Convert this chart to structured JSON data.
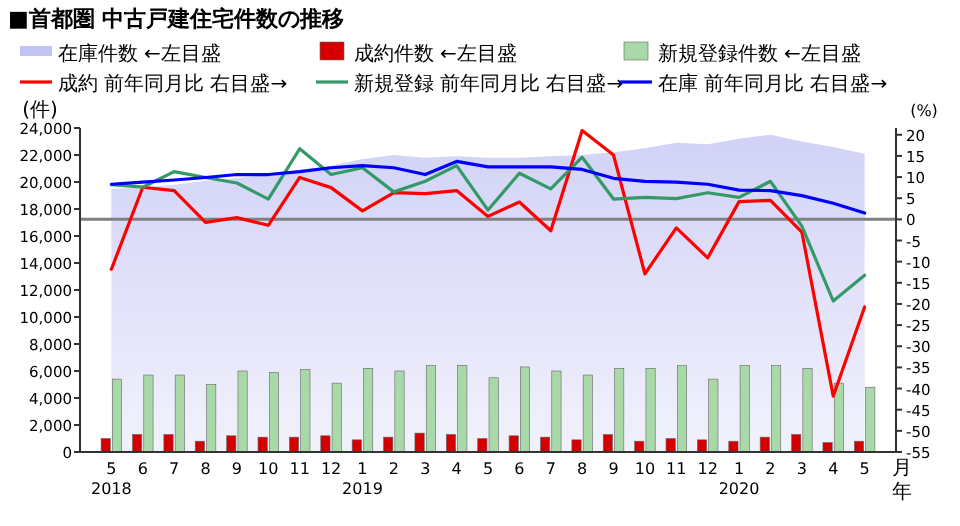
{
  "chart_data": {
    "type": "bar",
    "title": "■首都圏 中古戸建住宅件数の推移",
    "ylabel": "(件)",
    "y2label": "(%)",
    "xlabel": "月年",
    "categories": [
      "5\n2018",
      "6",
      "7",
      "8",
      "9",
      "10",
      "11",
      "12",
      "1\n2019",
      "2",
      "3",
      "4",
      "5",
      "6",
      "7",
      "8",
      "9",
      "10",
      "11",
      "12",
      "1\n2020",
      "2",
      "3",
      "4",
      "5"
    ],
    "series": [
      {
        "name": "在庫件数",
        "type": "area",
        "color": "#c4c4f4",
        "values": [
          19500,
          19600,
          19800,
          20100,
          20300,
          20500,
          20900,
          21200,
          21700,
          22000,
          21800,
          21900,
          21800,
          21800,
          21900,
          22000,
          22200,
          22500,
          22900,
          22800,
          23200,
          23500,
          23000,
          22600,
          22100
        ]
      },
      {
        "name": "成約件数",
        "color": "#d40000",
        "values": [
          1000,
          1300,
          1300,
          800,
          1200,
          1100,
          1100,
          1200,
          900,
          1100,
          1400,
          1300,
          1000,
          1200,
          1100,
          900,
          1300,
          800,
          1000,
          900,
          800,
          1100,
          1300,
          700,
          800
        ]
      },
      {
        "name": "新規登録件数",
        "color": "#a9d9a9",
        "values": [
          5400,
          5700,
          5700,
          5000,
          6000,
          5900,
          6100,
          5100,
          6200,
          6000,
          6400,
          6400,
          5500,
          6300,
          6000,
          5700,
          6200,
          6200,
          6400,
          5400,
          6400,
          6400,
          6200,
          5100,
          4800
        ]
      },
      {
        "name": "成約 前年同月比",
        "type": "line",
        "axis": "y2",
        "color": "#ff0000",
        "values": [
          -11.8,
          7.6,
          6.8,
          -0.7,
          0.4,
          -1.4,
          9.9,
          7.5,
          2.0,
          6.3,
          6.1,
          6.8,
          0.7,
          4.1,
          -2.7,
          21,
          15.2,
          -12.9,
          -2.0,
          -9.1,
          4.2,
          4.5,
          -3.0,
          -41.8,
          -20.7
        ]
      },
      {
        "name": "新規登録 前年同月比",
        "type": "line",
        "axis": "y2",
        "color": "#339966",
        "values": [
          8.2,
          7.6,
          11.3,
          9.9,
          8.6,
          4.8,
          16.7,
          10.6,
          12.2,
          6.5,
          9.0,
          12.7,
          2.2,
          10.9,
          7.2,
          14.7,
          4.8,
          5.2,
          4.9,
          6.3,
          5.2,
          9.0,
          -1.6,
          -19.3,
          -13.2
        ]
      },
      {
        "name": "在庫 前年同月比",
        "type": "line",
        "axis": "y2",
        "color": "#0000ff",
        "values": [
          8.3,
          8.8,
          9.3,
          9.9,
          10.6,
          10.6,
          11.3,
          12.2,
          12.7,
          12.2,
          10.6,
          13.7,
          12.4,
          12.4,
          12.4,
          11.8,
          9.7,
          9.0,
          8.8,
          8.3,
          6.9,
          6.8,
          5.6,
          3.8,
          1.5
        ]
      }
    ],
    "ylim": [
      0,
      24000
    ],
    "yticks": [
      {
        "value": 0,
        "label": "0"
      },
      {
        "value": 2000,
        "label": "2,000"
      },
      {
        "value": 4000,
        "label": "4,000"
      },
      {
        "value": 6000,
        "label": "6,000"
      },
      {
        "value": 8000,
        "label": "8,000"
      },
      {
        "value": 10000,
        "label": "10,000"
      },
      {
        "value": 12000,
        "label": "12,000"
      },
      {
        "value": 14000,
        "label": "14,000"
      },
      {
        "value": 16000,
        "label": "16,000"
      },
      {
        "value": 18000,
        "label": "18,000"
      },
      {
        "value": 20000,
        "label": "20,000"
      },
      {
        "value": 22000,
        "label": "22,000"
      },
      {
        "value": 24000,
        "label": "24,000"
      }
    ],
    "y2lim": [
      -55,
      21.6
    ],
    "y2ticks": [
      -55,
      -50,
      -45,
      -40,
      -35,
      -30,
      -25,
      -20,
      -15,
      -10,
      -5,
      0,
      5,
      10,
      15,
      20
    ],
    "ref_lines": [
      {
        "axis": "y2",
        "value": 0,
        "color": "#808080"
      }
    ],
    "annotations": [
      "←左目盛",
      "←左目盛",
      "←左目盛",
      "右目盛→",
      "右目盛→",
      "右目盛→"
    ],
    "legend": "top",
    "grid": false
  }
}
